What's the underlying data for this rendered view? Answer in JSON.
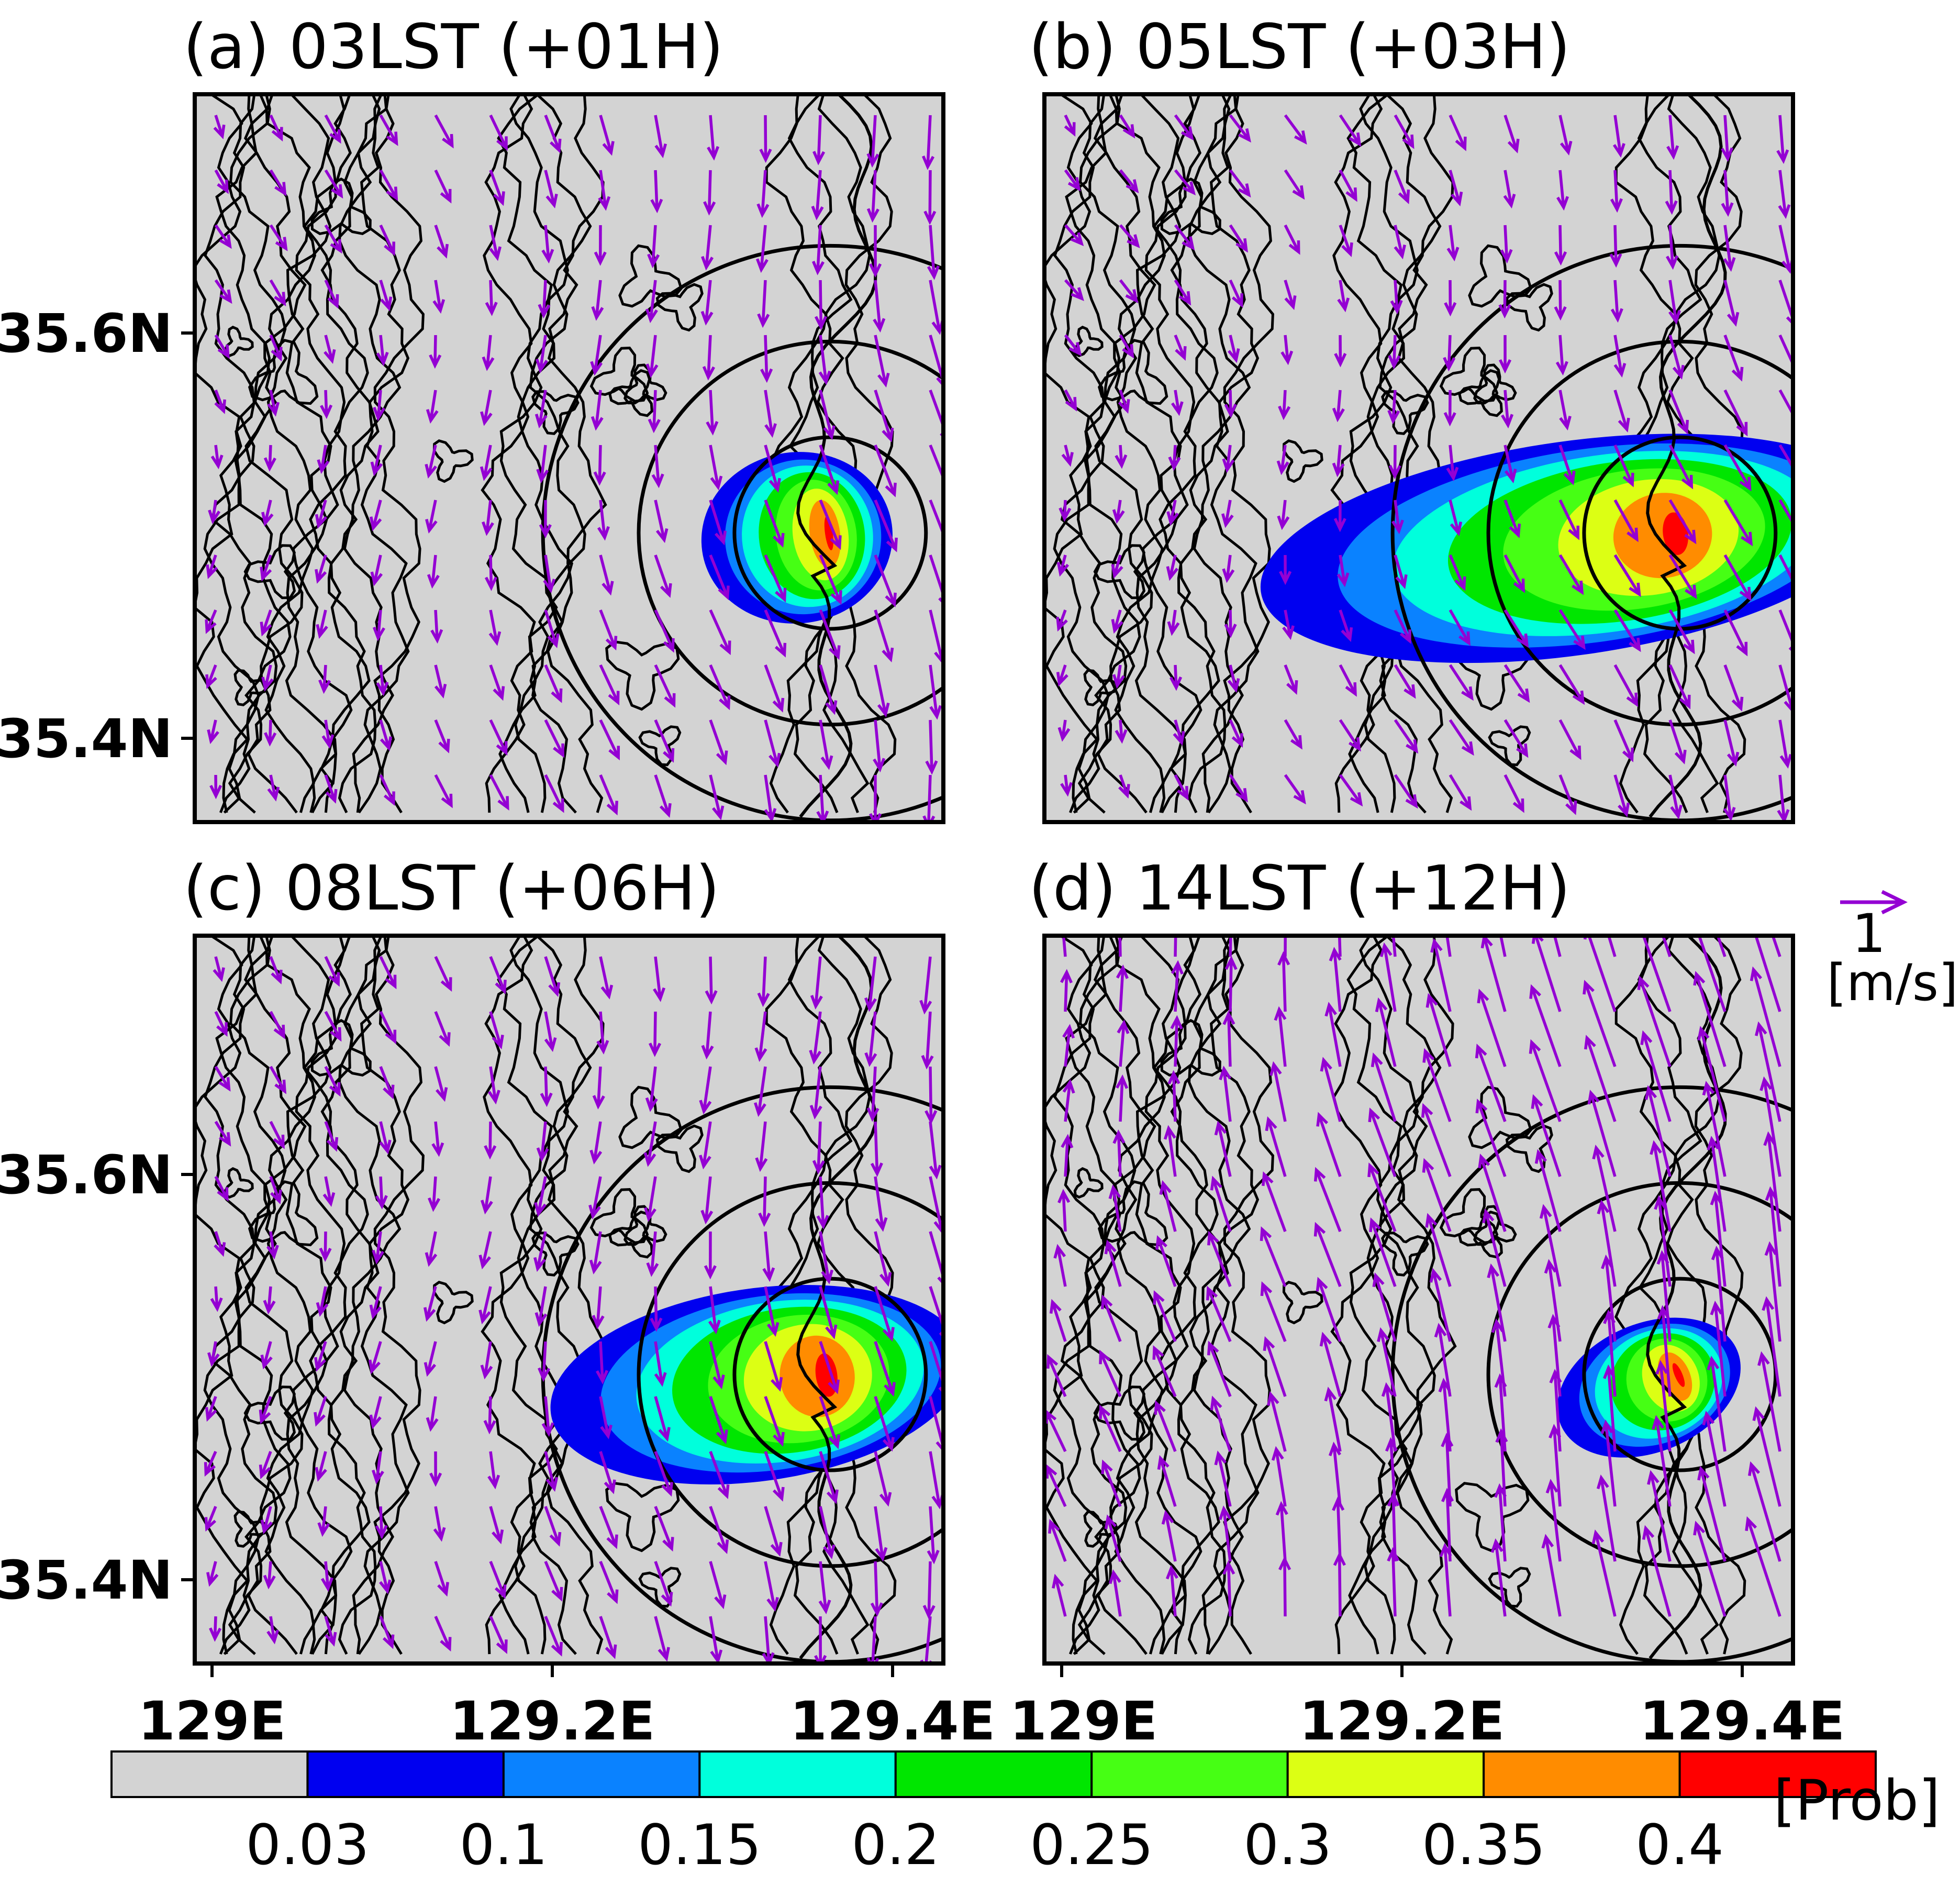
{
  "chart_data": {
    "type": "map",
    "lon_range": [
      128.995,
      129.425
    ],
    "lat_range": [
      35.36,
      35.7
    ],
    "lon_ticks": [
      129.0,
      129.2,
      129.4
    ],
    "lat_ticks": [
      35.4,
      35.6
    ],
    "lon_tick_labels": [
      "129E",
      "129.2E",
      "129.4E"
    ],
    "lat_tick_labels": [
      "35.4N",
      "35.6N"
    ],
    "source_point": {
      "lon": 129.36,
      "lat": 35.495
    },
    "range_circle_radii_deg": [
      0.055,
      0.11,
      0.165
    ],
    "panels": [
      {
        "id": "a",
        "title": "(a) 03LST (+01H)",
        "wind_u": 0.15,
        "wind_v": -0.85,
        "plume": {
          "direction_deg": 180,
          "length_deg": 0.055,
          "width_deg": 0.04,
          "peak": 0.41
        }
      },
      {
        "id": "b",
        "title": "(b) 05LST (+03H)",
        "wind_u": 0.25,
        "wind_v": -0.75,
        "plume": {
          "direction_deg": 180,
          "length_deg": 0.18,
          "width_deg": 0.05,
          "peak": 0.41
        }
      },
      {
        "id": "c",
        "title": "(c) 08LST (+06H)",
        "wind_u": 0.1,
        "wind_v": -0.9,
        "plume": {
          "direction_deg": 180,
          "length_deg": 0.12,
          "width_deg": 0.045,
          "peak": 0.42
        }
      },
      {
        "id": "d",
        "title": "(d) 14LST (+12H)",
        "wind_u": -0.35,
        "wind_v": 1.6,
        "plume": {
          "direction_deg": 165,
          "length_deg": 0.055,
          "width_deg": 0.03,
          "peak": 0.41
        }
      }
    ],
    "vector_reference": {
      "value": "1",
      "unit": "[m/s]"
    },
    "colorbar": {
      "levels": [
        "0.03",
        "0.1",
        "0.15",
        "0.2",
        "0.25",
        "0.3",
        "0.35",
        "0.4"
      ],
      "colors": [
        "#d3d3d3",
        "#0000f0",
        "#0a82ff",
        "#00ffdc",
        "#00e600",
        "#46ff14",
        "#dcff14",
        "#ff8c00",
        "#ff0000"
      ],
      "unit": "[Prob]"
    },
    "colors": {
      "vector": "#9400d3",
      "contour": "#000000",
      "background": "#d3d3d3"
    }
  }
}
